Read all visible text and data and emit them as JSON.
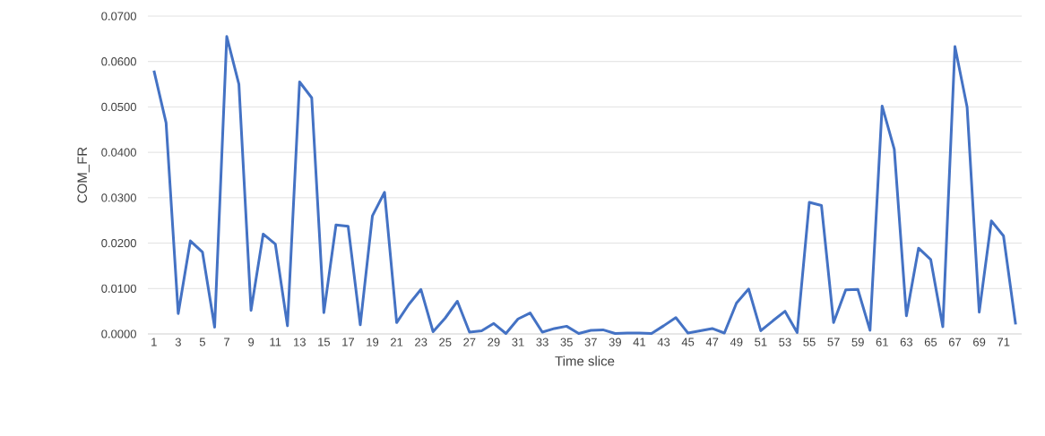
{
  "chart_data": {
    "type": "line",
    "xlabel": "Time slice",
    "ylabel": "COM_FR",
    "categories": [
      "1",
      null,
      "3",
      null,
      "5",
      null,
      "7",
      null,
      "9",
      null,
      "11",
      null,
      "13",
      null,
      "15",
      null,
      "17",
      null,
      "19",
      null,
      "21",
      null,
      "23",
      null,
      "25",
      null,
      "27",
      null,
      "29",
      null,
      "31",
      null,
      "33",
      null,
      "35",
      null,
      "37",
      null,
      "39",
      null,
      "41",
      null,
      "43",
      null,
      "45",
      null,
      "47",
      null,
      "49",
      null,
      "51",
      null,
      "53",
      null,
      "55",
      null,
      "57",
      null,
      "59",
      null,
      "61",
      null,
      "63",
      null,
      "65",
      null,
      "67",
      null,
      "69",
      null,
      "71",
      null
    ],
    "series": [
      {
        "color": "#4472c4",
        "values": [
          0.058,
          0.0465,
          0.0045,
          0.0205,
          0.018,
          0.0015,
          0.0655,
          0.055,
          0.0052,
          0.022,
          0.0198,
          0.0018,
          0.0555,
          0.052,
          0.0047,
          0.024,
          0.0237,
          0.002,
          0.026,
          0.0312,
          0.0025,
          0.0065,
          0.0098,
          0.0005,
          0.0035,
          0.0072,
          0.0004,
          0.0007,
          0.0023,
          0.0001,
          0.0033,
          0.0046,
          0.0004,
          0.0012,
          0.0017,
          0.0001,
          0.0008,
          0.0009,
          0.0001,
          0.0002,
          0.0002,
          0.0001,
          0.0018,
          0.0036,
          0.0002,
          0.0007,
          0.0012,
          0.0002,
          0.0068,
          0.0099,
          0.0007,
          0.0029,
          0.005,
          0.0003,
          0.029,
          0.0283,
          0.0025,
          0.0097,
          0.0098,
          0.0008,
          0.0502,
          0.0407,
          0.004,
          0.0189,
          0.0164,
          0.0016,
          0.0633,
          0.05,
          0.0048,
          0.0249,
          0.0216,
          0.0021
        ]
      }
    ],
    "ylim": [
      0,
      0.07
    ],
    "yticks": [
      {
        "value": 0,
        "label": "0.0000"
      },
      {
        "value": 0.01,
        "label": "0.0100"
      },
      {
        "value": 0.02,
        "label": "0.0200"
      },
      {
        "value": 0.03,
        "label": "0.0300"
      },
      {
        "value": 0.04,
        "label": "0.0400"
      },
      {
        "value": 0.05,
        "label": "0.0500"
      },
      {
        "value": 0.06,
        "label": "0.0600"
      },
      {
        "value": 0.07,
        "label": "0.0700"
      }
    ],
    "grid": "y",
    "legend": false,
    "marker": "none",
    "line_style": "solid"
  }
}
